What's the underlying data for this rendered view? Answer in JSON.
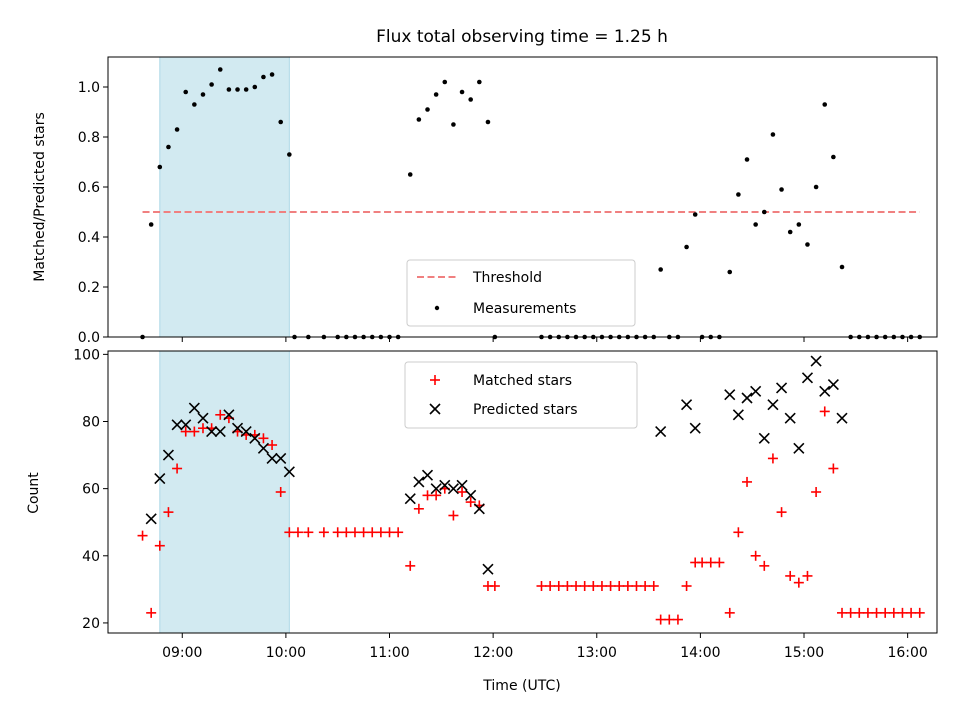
{
  "title": "Flux total observing time = 1.25 h",
  "colors": {
    "highlight": "#add8e6",
    "threshold": "#f08080",
    "measurements": "#000000",
    "matched": "#ff0000",
    "predicted": "#000000"
  },
  "chart_data": [
    {
      "type": "scatter",
      "ylabel": "Matched/Predicted stars",
      "ylim": [
        0,
        1.12
      ],
      "yticks": [
        "0.0",
        "0.2",
        "0.4",
        "0.6",
        "0.8",
        "1.0"
      ],
      "highlight_span": [
        "08:47",
        "10:02"
      ],
      "threshold": {
        "name": "Threshold",
        "value": 0.5,
        "x_range": [
          "08:37",
          "16:07"
        ]
      },
      "legend": {
        "placement": "lower center",
        "entries": [
          "Threshold",
          "Measurements"
        ]
      },
      "series": [
        {
          "name": "Measurements",
          "points": [
            [
              "08:37",
              0.0
            ],
            [
              "08:42",
              0.45
            ],
            [
              "08:47",
              0.68
            ],
            [
              "08:52",
              0.76
            ],
            [
              "08:57",
              0.83
            ],
            [
              "09:02",
              0.98
            ],
            [
              "09:07",
              0.93
            ],
            [
              "09:12",
              0.97
            ],
            [
              "09:17",
              1.01
            ],
            [
              "09:22",
              1.07
            ],
            [
              "09:27",
              0.99
            ],
            [
              "09:32",
              0.99
            ],
            [
              "09:37",
              0.99
            ],
            [
              "09:42",
              1.0
            ],
            [
              "09:47",
              1.04
            ],
            [
              "09:52",
              1.05
            ],
            [
              "09:57",
              0.86
            ],
            [
              "10:02",
              0.73
            ],
            [
              "10:05",
              0.0
            ],
            [
              "10:13",
              0.0
            ],
            [
              "10:22",
              0.0
            ],
            [
              "10:30",
              0.0
            ],
            [
              "10:35",
              0.0
            ],
            [
              "10:40",
              0.0
            ],
            [
              "10:45",
              0.0
            ],
            [
              "10:50",
              0.0
            ],
            [
              "10:55",
              0.0
            ],
            [
              "11:00",
              0.0
            ],
            [
              "11:05",
              0.0
            ],
            [
              "11:12",
              0.65
            ],
            [
              "11:17",
              0.87
            ],
            [
              "11:22",
              0.91
            ],
            [
              "11:27",
              0.97
            ],
            [
              "11:32",
              1.02
            ],
            [
              "11:37",
              0.85
            ],
            [
              "11:42",
              0.98
            ],
            [
              "11:47",
              0.95
            ],
            [
              "11:52",
              1.02
            ],
            [
              "11:57",
              0.86
            ],
            [
              "12:01",
              0.0
            ],
            [
              "12:28",
              0.0
            ],
            [
              "12:33",
              0.0
            ],
            [
              "12:38",
              0.0
            ],
            [
              "12:43",
              0.0
            ],
            [
              "12:48",
              0.0
            ],
            [
              "12:53",
              0.0
            ],
            [
              "12:58",
              0.0
            ],
            [
              "13:03",
              0.0
            ],
            [
              "13:08",
              0.0
            ],
            [
              "13:13",
              0.0
            ],
            [
              "13:18",
              0.0
            ],
            [
              "13:23",
              0.0
            ],
            [
              "13:28",
              0.0
            ],
            [
              "13:33",
              0.0
            ],
            [
              "13:37",
              0.27
            ],
            [
              "13:42",
              0.0
            ],
            [
              "13:47",
              0.0
            ],
            [
              "13:52",
              0.36
            ],
            [
              "13:57",
              0.49
            ],
            [
              "14:01",
              0.0
            ],
            [
              "14:06",
              0.0
            ],
            [
              "14:11",
              0.0
            ],
            [
              "14:17",
              0.26
            ],
            [
              "14:22",
              0.57
            ],
            [
              "14:27",
              0.71
            ],
            [
              "14:32",
              0.45
            ],
            [
              "14:37",
              0.5
            ],
            [
              "14:42",
              0.81
            ],
            [
              "14:47",
              0.59
            ],
            [
              "14:52",
              0.42
            ],
            [
              "14:57",
              0.45
            ],
            [
              "15:02",
              0.37
            ],
            [
              "15:07",
              0.6
            ],
            [
              "15:12",
              0.93
            ],
            [
              "15:17",
              0.72
            ],
            [
              "15:22",
              0.28
            ],
            [
              "15:27",
              0.0
            ],
            [
              "15:32",
              0.0
            ],
            [
              "15:37",
              0.0
            ],
            [
              "15:42",
              0.0
            ],
            [
              "15:47",
              0.0
            ],
            [
              "15:52",
              0.0
            ],
            [
              "15:57",
              0.0
            ],
            [
              "16:02",
              0.0
            ],
            [
              "16:07",
              0.0
            ]
          ]
        }
      ]
    },
    {
      "type": "scatter",
      "xlabel": "Time (UTC)",
      "ylabel": "Count",
      "ylim": [
        17,
        101
      ],
      "yticks": [
        "20",
        "40",
        "60",
        "80",
        "100"
      ],
      "xlim": [
        "08:17",
        "16:17"
      ],
      "xticks": [
        "09:00",
        "10:00",
        "11:00",
        "12:00",
        "13:00",
        "14:00",
        "15:00",
        "16:00"
      ],
      "highlight_span": [
        "08:47",
        "10:02"
      ],
      "legend": {
        "placement": "upper center",
        "entries": [
          "Matched stars",
          "Predicted stars"
        ]
      },
      "series": [
        {
          "name": "Matched stars",
          "points": [
            [
              "08:37",
              46
            ],
            [
              "08:42",
              23
            ],
            [
              "08:47",
              43
            ],
            [
              "08:52",
              53
            ],
            [
              "08:57",
              66
            ],
            [
              "09:02",
              77
            ],
            [
              "09:07",
              77
            ],
            [
              "09:12",
              78
            ],
            [
              "09:17",
              78
            ],
            [
              "09:22",
              82
            ],
            [
              "09:27",
              81
            ],
            [
              "09:32",
              77
            ],
            [
              "09:37",
              76
            ],
            [
              "09:42",
              76
            ],
            [
              "09:47",
              75
            ],
            [
              "09:52",
              73
            ],
            [
              "09:57",
              59
            ],
            [
              "10:02",
              47
            ],
            [
              "10:07",
              47
            ],
            [
              "10:13",
              47
            ],
            [
              "10:22",
              47
            ],
            [
              "10:30",
              47
            ],
            [
              "10:35",
              47
            ],
            [
              "10:40",
              47
            ],
            [
              "10:45",
              47
            ],
            [
              "10:50",
              47
            ],
            [
              "10:55",
              47
            ],
            [
              "11:00",
              47
            ],
            [
              "11:05",
              47
            ],
            [
              "11:12",
              37
            ],
            [
              "11:17",
              54
            ],
            [
              "11:22",
              58
            ],
            [
              "11:27",
              58
            ],
            [
              "11:32",
              60
            ],
            [
              "11:37",
              52
            ],
            [
              "11:42",
              59
            ],
            [
              "11:47",
              56
            ],
            [
              "11:52",
              55
            ],
            [
              "11:57",
              31
            ],
            [
              "12:01",
              31
            ],
            [
              "12:28",
              31
            ],
            [
              "12:33",
              31
            ],
            [
              "12:38",
              31
            ],
            [
              "12:43",
              31
            ],
            [
              "12:48",
              31
            ],
            [
              "12:53",
              31
            ],
            [
              "12:58",
              31
            ],
            [
              "13:03",
              31
            ],
            [
              "13:08",
              31
            ],
            [
              "13:13",
              31
            ],
            [
              "13:18",
              31
            ],
            [
              "13:23",
              31
            ],
            [
              "13:28",
              31
            ],
            [
              "13:33",
              31
            ],
            [
              "13:37",
              21
            ],
            [
              "13:42",
              21
            ],
            [
              "13:47",
              21
            ],
            [
              "13:52",
              31
            ],
            [
              "13:57",
              38
            ],
            [
              "14:01",
              38
            ],
            [
              "14:06",
              38
            ],
            [
              "14:11",
              38
            ],
            [
              "14:17",
              23
            ],
            [
              "14:22",
              47
            ],
            [
              "14:27",
              62
            ],
            [
              "14:32",
              40
            ],
            [
              "14:37",
              37
            ],
            [
              "14:42",
              69
            ],
            [
              "14:47",
              53
            ],
            [
              "14:52",
              34
            ],
            [
              "14:57",
              32
            ],
            [
              "15:02",
              34
            ],
            [
              "15:07",
              59
            ],
            [
              "15:12",
              83
            ],
            [
              "15:17",
              66
            ],
            [
              "15:22",
              23
            ],
            [
              "15:27",
              23
            ],
            [
              "15:32",
              23
            ],
            [
              "15:37",
              23
            ],
            [
              "15:42",
              23
            ],
            [
              "15:47",
              23
            ],
            [
              "15:52",
              23
            ],
            [
              "15:57",
              23
            ],
            [
              "16:02",
              23
            ],
            [
              "16:07",
              23
            ]
          ]
        },
        {
          "name": "Predicted stars",
          "points": [
            [
              "08:42",
              51
            ],
            [
              "08:47",
              63
            ],
            [
              "08:52",
              70
            ],
            [
              "08:57",
              79
            ],
            [
              "09:02",
              79
            ],
            [
              "09:07",
              84
            ],
            [
              "09:12",
              81
            ],
            [
              "09:17",
              77
            ],
            [
              "09:22",
              77
            ],
            [
              "09:27",
              82
            ],
            [
              "09:32",
              78
            ],
            [
              "09:37",
              77
            ],
            [
              "09:42",
              75
            ],
            [
              "09:47",
              72
            ],
            [
              "09:52",
              69
            ],
            [
              "09:57",
              69
            ],
            [
              "10:02",
              65
            ],
            [
              "11:12",
              57
            ],
            [
              "11:17",
              62
            ],
            [
              "11:22",
              64
            ],
            [
              "11:27",
              60
            ],
            [
              "11:32",
              61
            ],
            [
              "11:37",
              60
            ],
            [
              "11:42",
              61
            ],
            [
              "11:47",
              58
            ],
            [
              "11:52",
              54
            ],
            [
              "11:57",
              36
            ],
            [
              "13:37",
              77
            ],
            [
              "13:52",
              85
            ],
            [
              "13:57",
              78
            ],
            [
              "14:17",
              88
            ],
            [
              "14:22",
              82
            ],
            [
              "14:27",
              87
            ],
            [
              "14:32",
              89
            ],
            [
              "14:37",
              75
            ],
            [
              "14:42",
              85
            ],
            [
              "14:47",
              90
            ],
            [
              "14:52",
              81
            ],
            [
              "14:57",
              72
            ],
            [
              "15:02",
              93
            ],
            [
              "15:07",
              98
            ],
            [
              "15:12",
              89
            ],
            [
              "15:17",
              91
            ],
            [
              "15:22",
              81
            ]
          ]
        }
      ]
    }
  ]
}
